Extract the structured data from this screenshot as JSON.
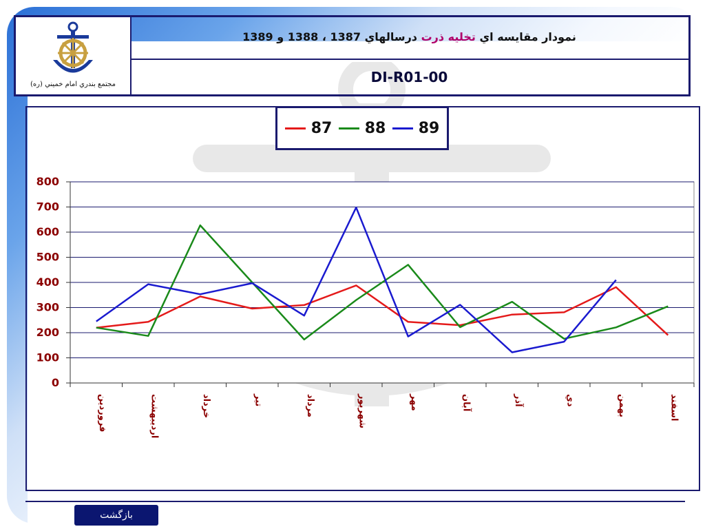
{
  "header": {
    "logo_caption": "مجتمع بندري امام خميني (ره)",
    "title_part1": "نمودار مقايسه اي ",
    "title_highlight": "تخليه ذرت",
    "title_part2": " درسالهاي 1387 ، 1388 و 1389",
    "doc_code": "DI-R01-00"
  },
  "footer": {
    "back_label": "بازگشت"
  },
  "chart_data": {
    "type": "line",
    "categories": [
      "فروردين",
      "ارديبهشت",
      "خرداد",
      "تير",
      "مرداد",
      "شهريور",
      "مهر",
      "آبان",
      "آذر",
      "دي",
      "بهمن",
      "اسفند"
    ],
    "series": [
      {
        "name": "87",
        "color": "#e41a1a",
        "values": [
          220,
          243,
          344,
          296,
          310,
          388,
          243,
          230,
          272,
          281,
          381,
          190
        ]
      },
      {
        "name": "88",
        "color": "#1a8a1a",
        "values": [
          220,
          187,
          627,
          400,
          173,
          330,
          470,
          222,
          323,
          176,
          221,
          305
        ]
      },
      {
        "name": "89",
        "color": "#1a1acf",
        "values": [
          245,
          393,
          353,
          397,
          268,
          698,
          185,
          311,
          122,
          164,
          410,
          null
        ]
      }
    ],
    "ylim": [
      0,
      800
    ],
    "yticks": [
      "0",
      "100",
      "200",
      "300",
      "400",
      "500",
      "600",
      "700",
      "800"
    ],
    "grid": true,
    "legend_position": "top-center"
  }
}
